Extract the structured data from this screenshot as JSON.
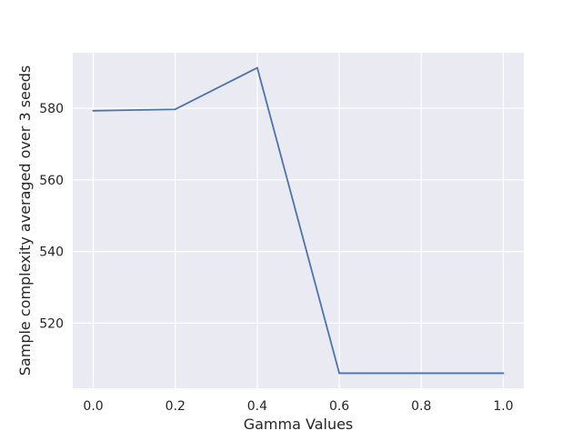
{
  "chart_data": {
    "type": "line",
    "title": "",
    "xlabel": "Gamma Values",
    "ylabel": "Sample complexity averaged over 3 seeds",
    "x": [
      0.0,
      0.2,
      0.4,
      0.6,
      0.8,
      1.0
    ],
    "series": [
      {
        "values": [
          579.3,
          579.7,
          591.3,
          506.0,
          506.0,
          506.0
        ]
      }
    ],
    "xlim": [
      -0.05,
      1.05
    ],
    "ylim": [
      501.8,
      595.5
    ],
    "x_ticks": [
      0.0,
      0.2,
      0.4,
      0.6,
      0.8,
      1.0
    ],
    "x_tick_labels": [
      "0.0",
      "0.2",
      "0.4",
      "0.6",
      "0.8",
      "1.0"
    ],
    "y_ticks": [
      520,
      540,
      560,
      580
    ],
    "y_tick_labels": [
      "520",
      "540",
      "560",
      "580"
    ],
    "grid": true,
    "legend": "none",
    "colors": {
      "background": "#eaeaf2",
      "grid": "#ffffff",
      "line": "#4c72b0"
    }
  }
}
